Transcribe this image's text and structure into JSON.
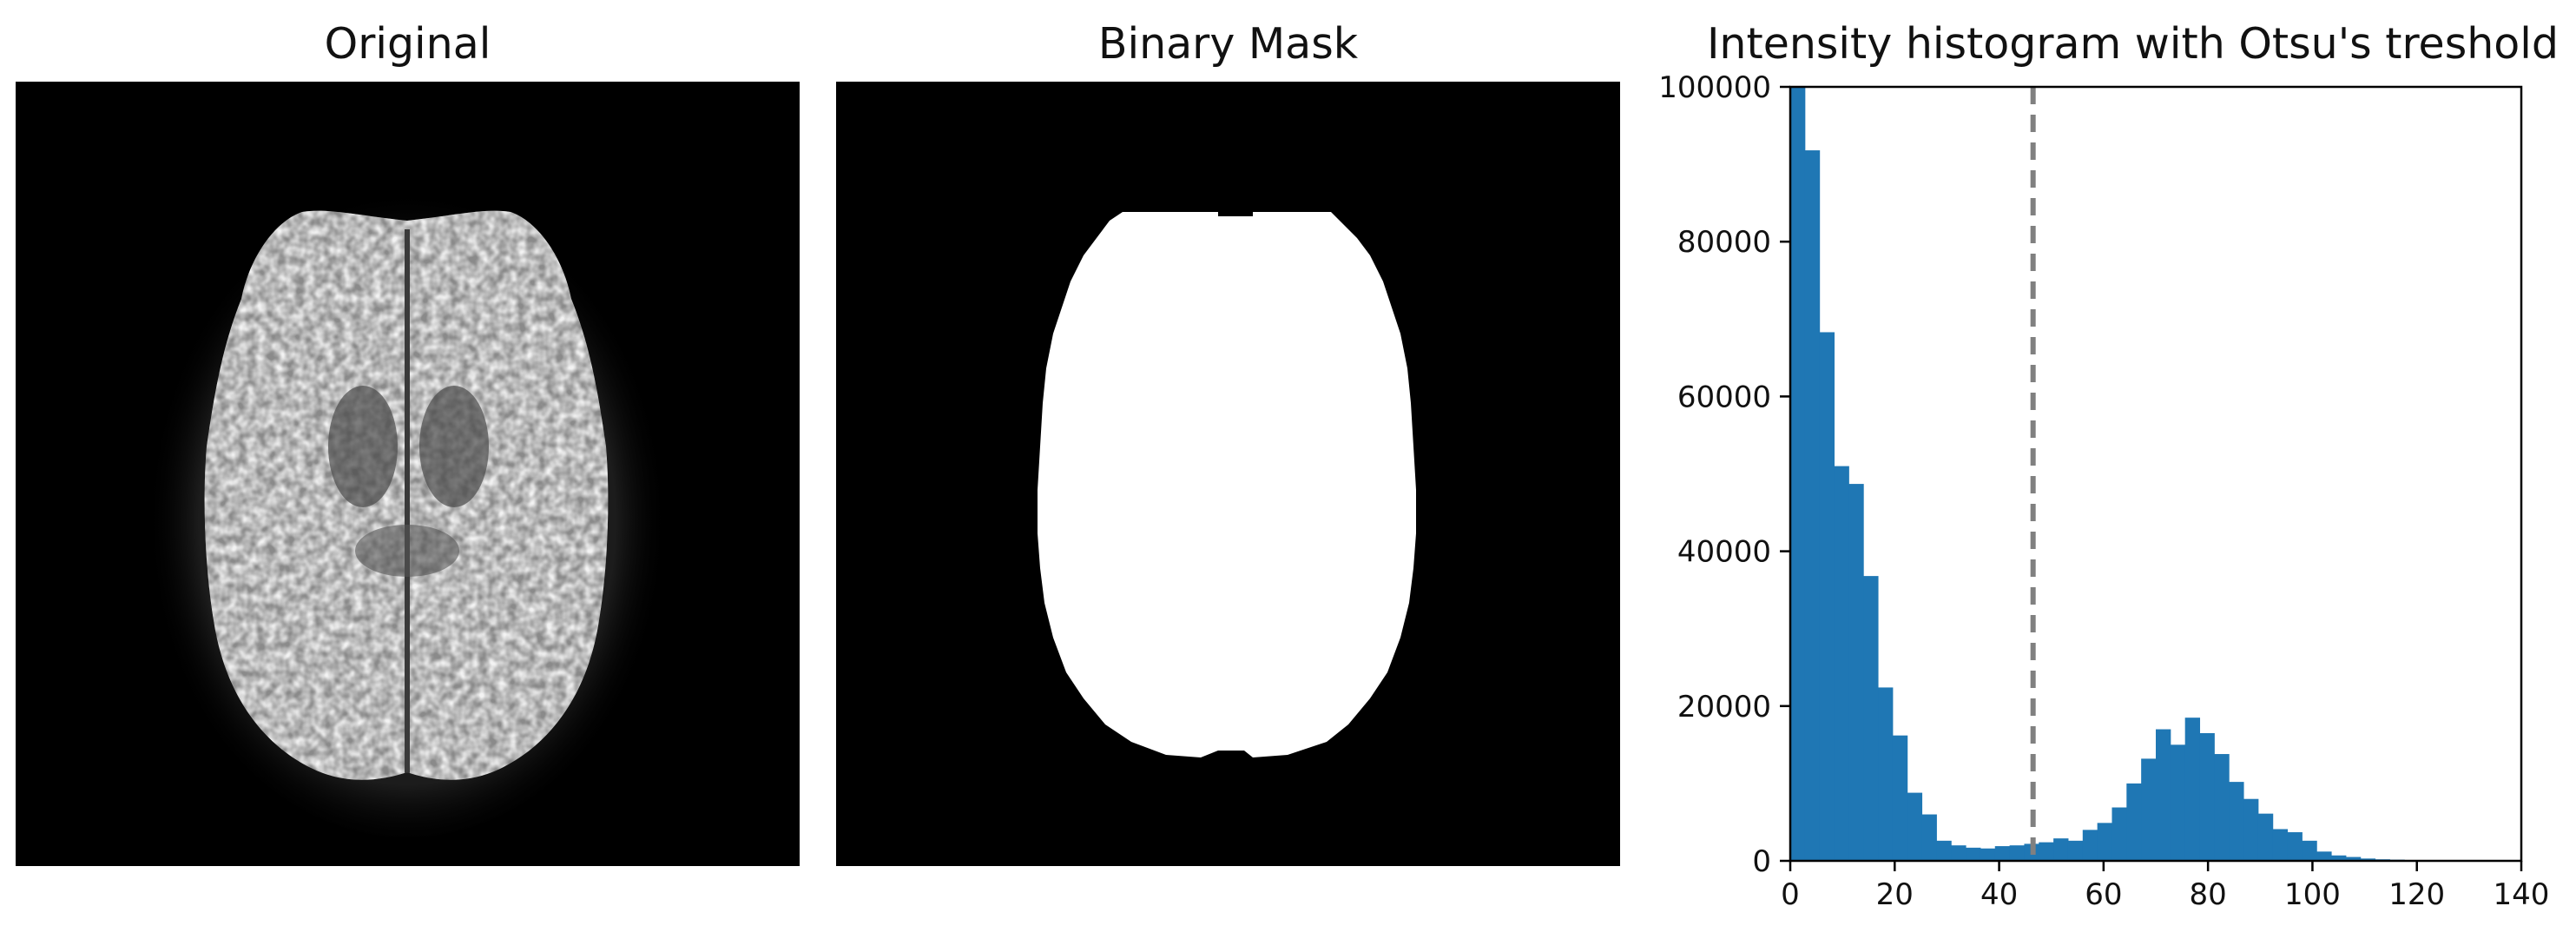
{
  "panels": {
    "original": {
      "title": "Original"
    },
    "mask": {
      "title": "Binary Mask"
    },
    "histogram": {
      "title": "Intensity histogram with Otsu's treshold"
    }
  },
  "chart_data": {
    "type": "bar",
    "title": "Intensity histogram with Otsu's treshold",
    "xlabel": "",
    "ylabel": "",
    "xlim": [
      0,
      140
    ],
    "ylim": [
      0,
      100000
    ],
    "xticks": [
      0,
      20,
      40,
      60,
      80,
      100,
      120,
      140
    ],
    "yticks": [
      0,
      20000,
      40000,
      60000,
      80000,
      100000
    ],
    "bin_width": 2.8,
    "bin_start": 0,
    "values": [
      100000,
      91800,
      68300,
      51000,
      48700,
      36800,
      22400,
      16200,
      8800,
      6000,
      2600,
      2000,
      1700,
      1600,
      1900,
      2000,
      2200,
      2400,
      2900,
      2600,
      4000,
      4900,
      6900,
      10000,
      13200,
      17000,
      15000,
      18500,
      16500,
      13800,
      10200,
      8000,
      6100,
      4100,
      3700,
      2600,
      1200,
      700,
      500,
      300,
      200,
      150,
      100,
      50,
      30,
      20,
      10,
      5,
      0,
      0
    ],
    "threshold": 46.5,
    "bar_color": "#1f77b4",
    "threshold_color": "#808080",
    "grid": false
  }
}
